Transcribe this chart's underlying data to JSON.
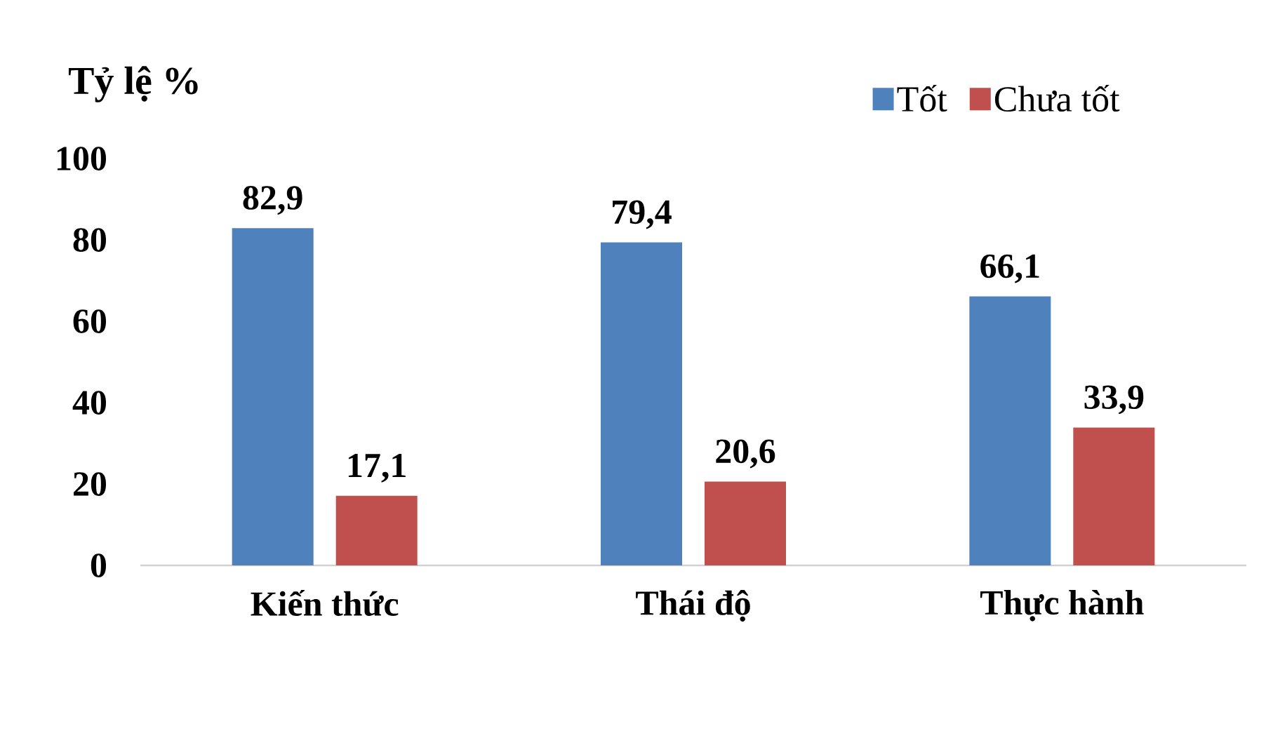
{
  "chart_data": {
    "type": "bar",
    "ylabel": "Tỷ lệ %",
    "categories": [
      "Kiến thức",
      "Thái độ",
      "Thực hành"
    ],
    "series": [
      {
        "name": "Tốt",
        "color": "#4f81bd",
        "values": [
          82.9,
          79.4,
          66.1
        ],
        "value_labels": [
          "82,9",
          "79,4",
          "66,1"
        ]
      },
      {
        "name": "Chưa tốt",
        "color": "#c0504d",
        "values": [
          17.1,
          20.6,
          33.9
        ],
        "value_labels": [
          "17,1",
          "20,6",
          "33,9"
        ]
      }
    ],
    "ylim": [
      0,
      100
    ],
    "yticks": [
      0,
      20,
      40,
      60,
      80,
      100
    ],
    "grid": false,
    "legend": "top right"
  }
}
